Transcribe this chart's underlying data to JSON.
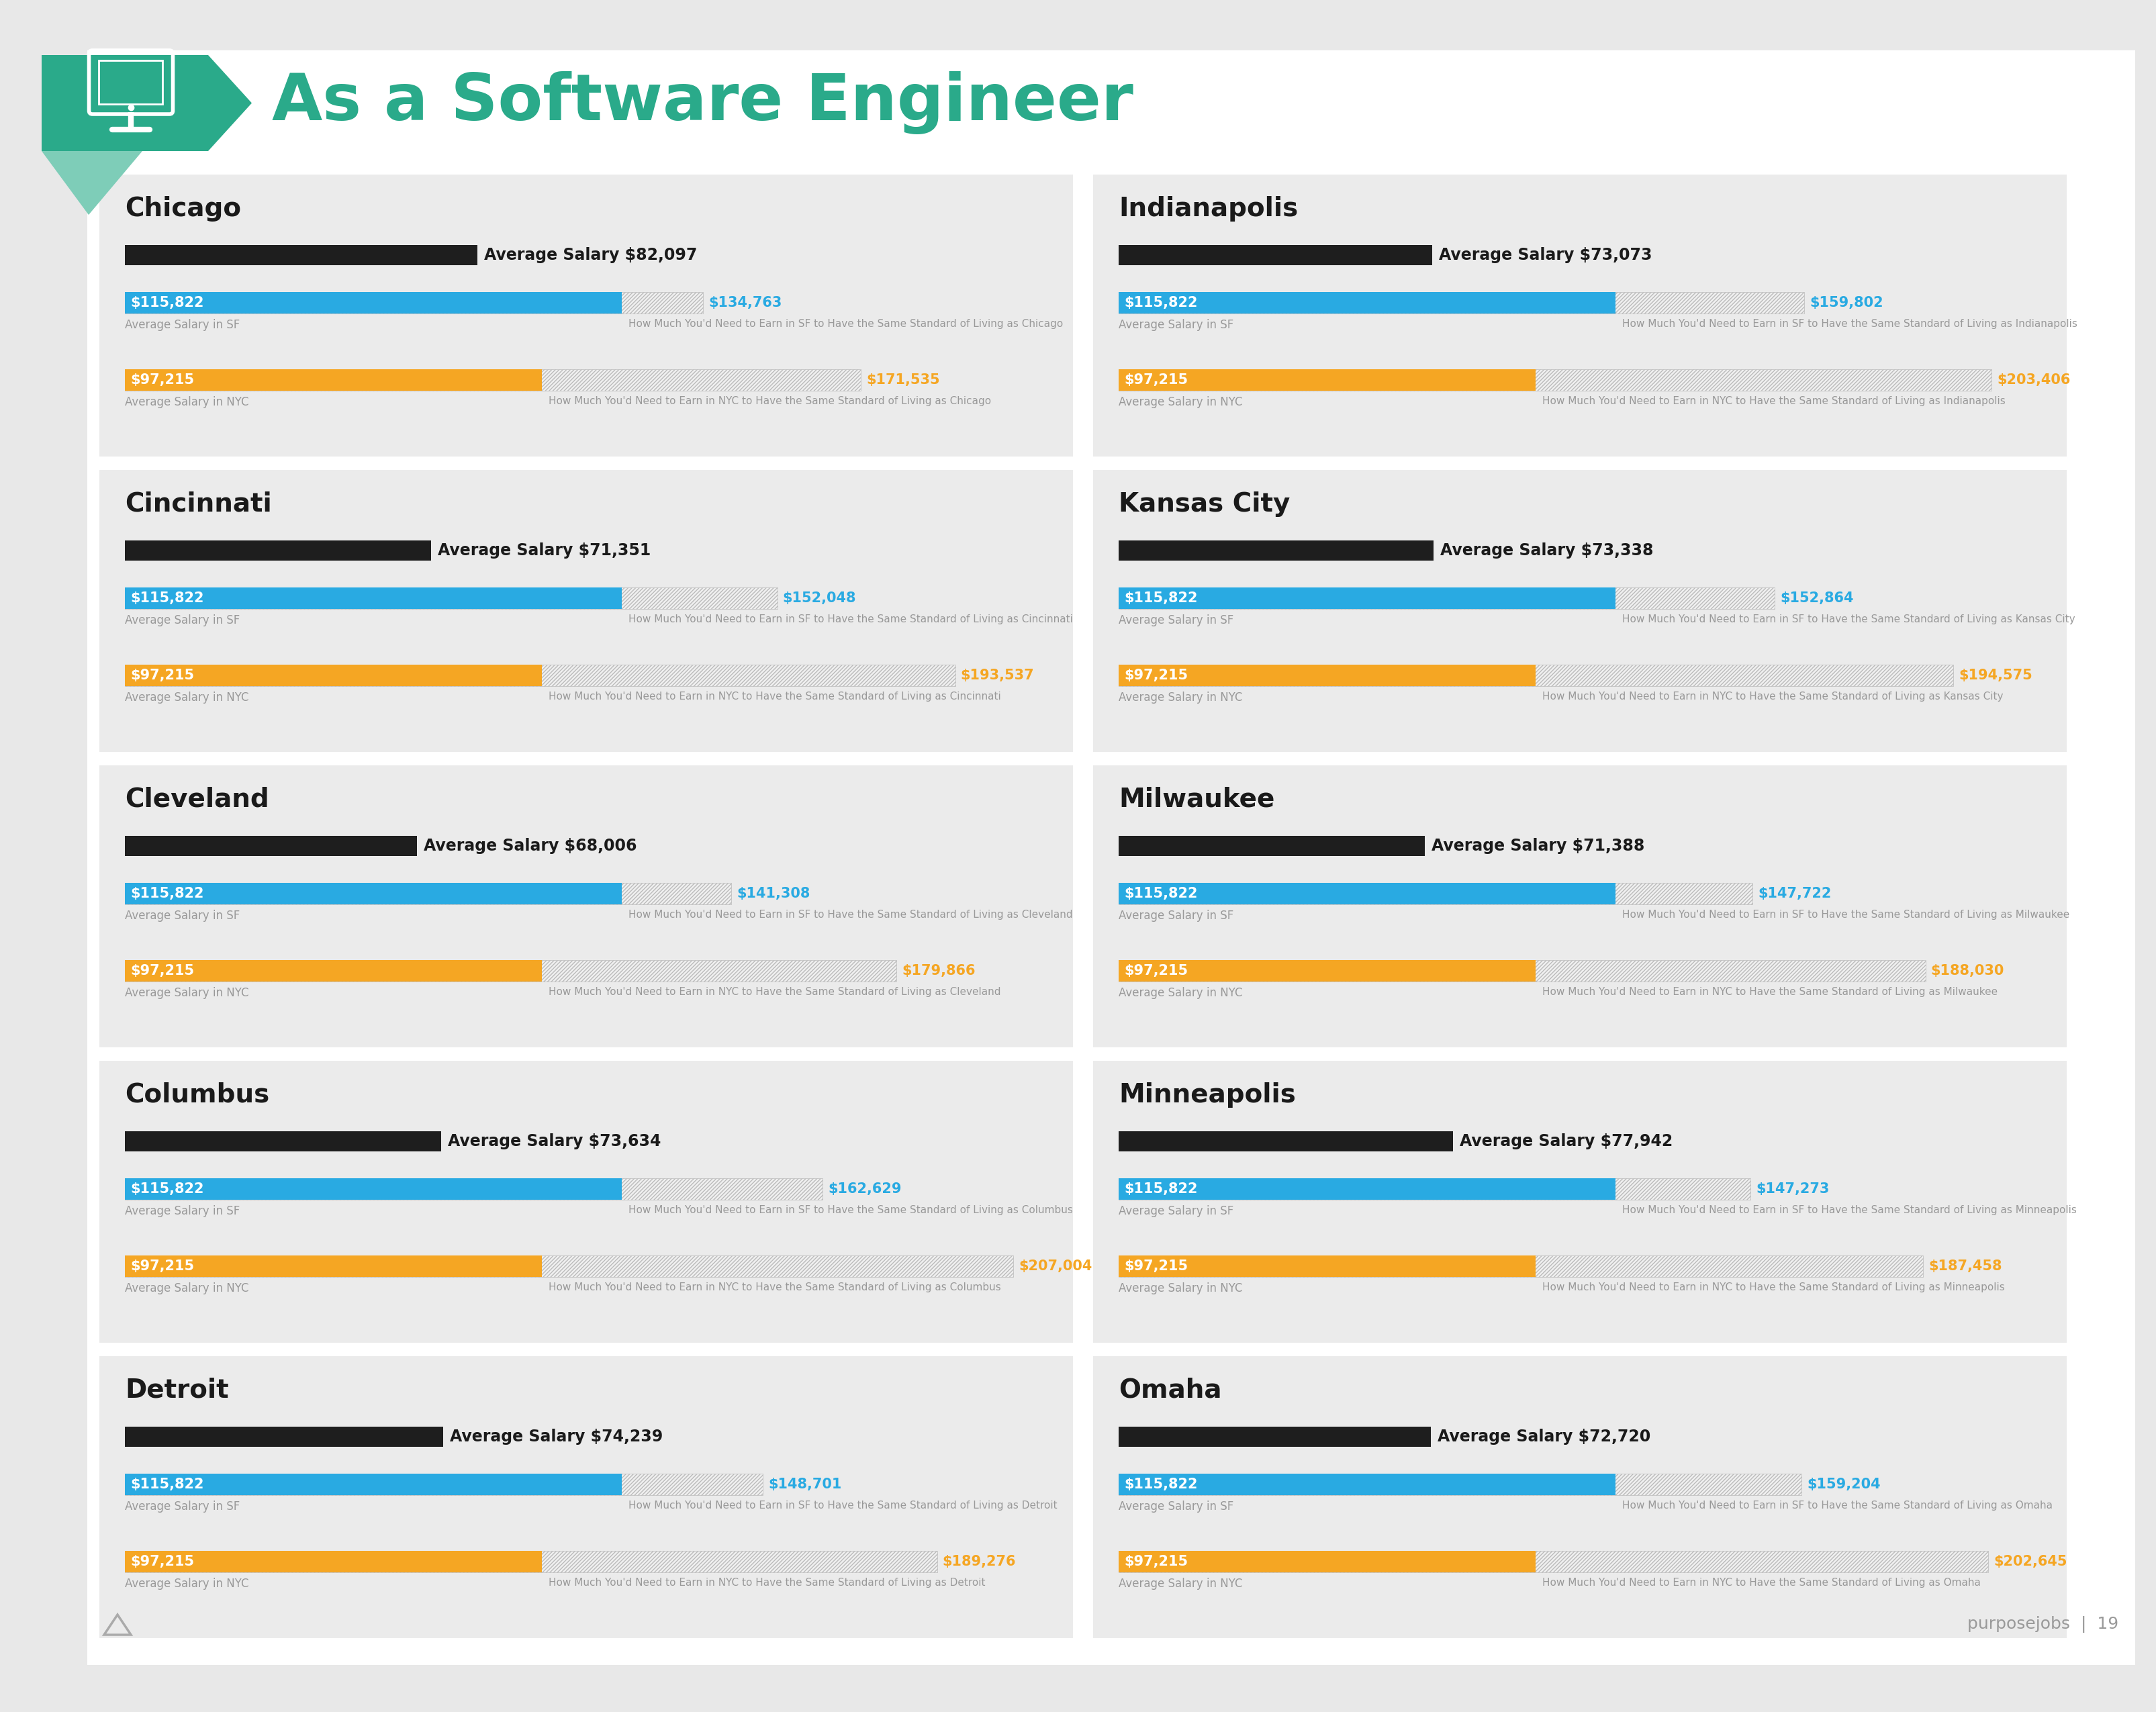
{
  "title": "As a Software Engineer",
  "bg_color": "#e8e8e8",
  "panel_bg": "#ebebeb",
  "white_bg": "#ffffff",
  "header_teal": "#2aaa8a",
  "header_light_teal": "#7ecdb8",
  "bar_black": "#1e1e1e",
  "bar_blue": "#29aae2",
  "bar_gold": "#f5a623",
  "text_dark": "#1a1a1a",
  "text_gray": "#999999",
  "cities": [
    {
      "name": "Chicago",
      "avg_salary": 82097,
      "sf_salary": 115822,
      "sf_equiv": 134763,
      "nyc_salary": 97215,
      "nyc_equiv": 171535
    },
    {
      "name": "Indianapolis",
      "avg_salary": 73073,
      "sf_salary": 115822,
      "sf_equiv": 159802,
      "nyc_salary": 97215,
      "nyc_equiv": 203406
    },
    {
      "name": "Cincinnati",
      "avg_salary": 71351,
      "sf_salary": 115822,
      "sf_equiv": 152048,
      "nyc_salary": 97215,
      "nyc_equiv": 193537
    },
    {
      "name": "Kansas City",
      "avg_salary": 73338,
      "sf_salary": 115822,
      "sf_equiv": 152864,
      "nyc_salary": 97215,
      "nyc_equiv": 194575
    },
    {
      "name": "Cleveland",
      "avg_salary": 68006,
      "sf_salary": 115822,
      "sf_equiv": 141308,
      "nyc_salary": 97215,
      "nyc_equiv": 179866
    },
    {
      "name": "Milwaukee",
      "avg_salary": 71388,
      "sf_salary": 115822,
      "sf_equiv": 147722,
      "nyc_salary": 97215,
      "nyc_equiv": 188030
    },
    {
      "name": "Columbus",
      "avg_salary": 73634,
      "sf_salary": 115822,
      "sf_equiv": 162629,
      "nyc_salary": 97215,
      "nyc_equiv": 207004
    },
    {
      "name": "Minneapolis",
      "avg_salary": 77942,
      "sf_salary": 115822,
      "sf_equiv": 147273,
      "nyc_salary": 97215,
      "nyc_equiv": 187458
    },
    {
      "name": "Detroit",
      "avg_salary": 74239,
      "sf_salary": 115822,
      "sf_equiv": 148701,
      "nyc_salary": 97215,
      "nyc_equiv": 189276
    },
    {
      "name": "Omaha",
      "avg_salary": 72720,
      "sf_salary": 115822,
      "sf_equiv": 159204,
      "nyc_salary": 97215,
      "nyc_equiv": 202645
    }
  ],
  "max_bar_value": 215000,
  "footer_text": "purposejobs",
  "page_number": "19"
}
